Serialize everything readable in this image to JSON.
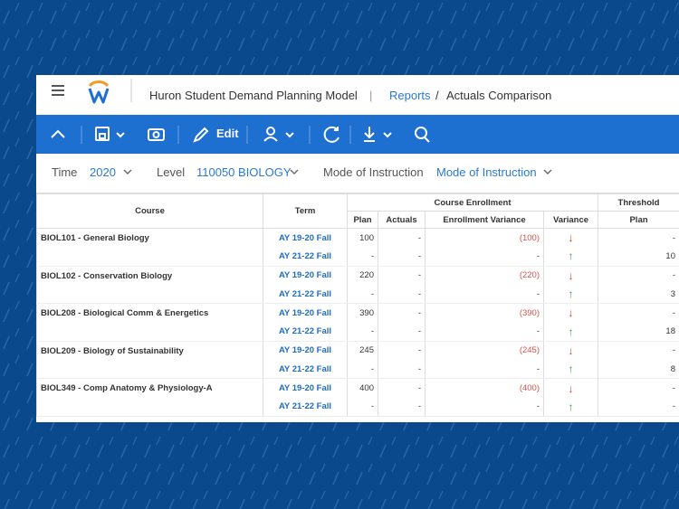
{
  "header": {
    "app_title": "Huron Student Demand Planning Model",
    "separator": "|",
    "breadcrumb": [
      "Reports",
      "/",
      "Actuals Comparison"
    ]
  },
  "toolbar": {
    "edit": "Edit"
  },
  "filters": [
    {
      "label": "Time",
      "value": "2020"
    },
    {
      "label": "Level",
      "value": "110050 BIOLOGY"
    },
    {
      "label": "Mode of Instruction",
      "value": "Mode of Instruction"
    }
  ],
  "table": {
    "group_headers": [
      "Course Enrollment",
      "Threshold"
    ],
    "columns": [
      "Course",
      "Term",
      "Plan",
      "Actuals",
      "Enrollment Variance",
      "Variance",
      "Plan"
    ],
    "rows": [
      [
        "BIOL101 - General Biology",
        "AY 19-20 Fall",
        "100",
        "-",
        "(100)",
        "↓",
        "-"
      ],
      [
        null,
        "AY 21-22 Fall",
        "-",
        "-",
        "-",
        "↑",
        "10"
      ],
      [
        "BIOL102 - Conservation Biology",
        "AY 19-20 Fall",
        "220",
        "-",
        "(220)",
        "↓",
        "-"
      ],
      [
        null,
        "AY 21-22 Fall",
        "-",
        "-",
        "-",
        "↑",
        "3"
      ],
      [
        "BIOL208 - Biological Comm & Energetics",
        "AY 19-20 Fall",
        "390",
        "-",
        "(390)",
        "↓",
        "-"
      ],
      [
        null,
        "AY 21-22 Fall",
        "-",
        "-",
        "-",
        "↑",
        "18"
      ],
      [
        "BIOL209 - Biology of Sustainability",
        "AY 19-20 Fall",
        "245",
        "-",
        "(245)",
        "↓",
        "-"
      ],
      [
        null,
        "AY 21-22 Fall",
        "-",
        "-",
        "-",
        "↑",
        "8"
      ],
      [
        "BIOL349 - Comp Anatomy & Physiology-A",
        "AY 19-20 Fall",
        "400",
        "-",
        "(400)",
        "↓",
        "-"
      ],
      [
        null,
        "AY 21-22 Fall",
        "-",
        "-",
        "-",
        "↑",
        "-"
      ]
    ]
  }
}
